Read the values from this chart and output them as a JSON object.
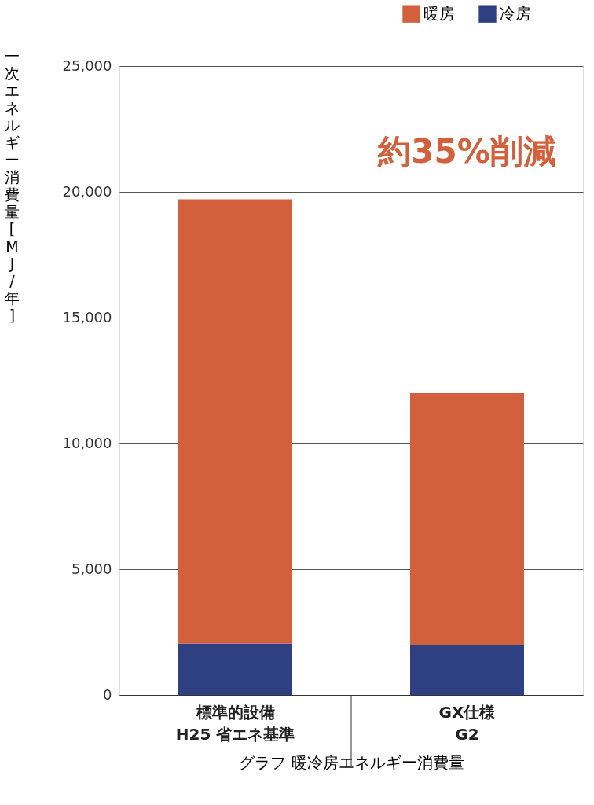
{
  "chart_data": {
    "type": "bar",
    "stacked": true,
    "xlabel": "グラフ 暖冷房エネルギー消費量",
    "ylabel": "一次エネルギー消費量[MJ/年]",
    "categories": [
      "標準的設備\nH25 省エネ基準",
      "GX仕様\nG2"
    ],
    "series": [
      {
        "name": "冷房",
        "color": "#2e3f82",
        "values": [
          2050,
          2000
        ]
      },
      {
        "name": "暖房",
        "color": "#d2603c",
        "values": [
          17650,
          10000
        ]
      }
    ],
    "ylim": [
      0,
      25000
    ],
    "yticks": [
      0,
      {
        "value": 5000,
        "label": "5,000"
      },
      {
        "value": 10000,
        "label": "10,000"
      },
      {
        "value": 15000,
        "label": "15,000"
      },
      {
        "value": 20000,
        "label": "20,000"
      },
      {
        "value": 25000,
        "label": "25,000"
      }
    ],
    "grid": "y",
    "legend": "top right",
    "annotations": [
      "約35%削減"
    ]
  }
}
